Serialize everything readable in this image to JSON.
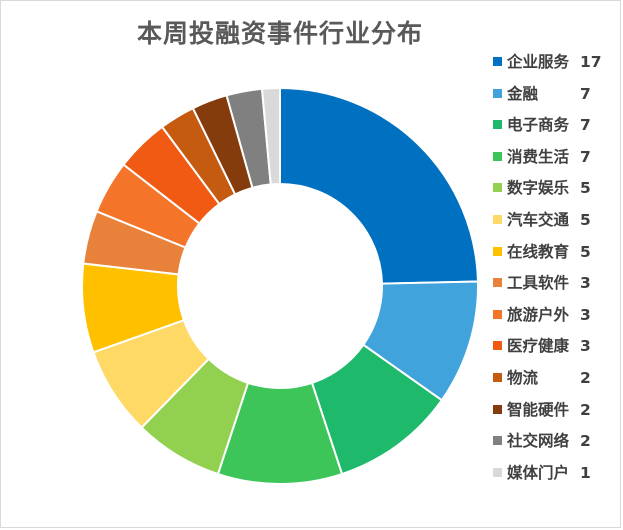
{
  "chart_data": {
    "type": "pie",
    "title": "本周投融资事件行业分布",
    "legend_position": "right",
    "categories": [
      "企业服务",
      "金融",
      "电子商务",
      "消费生活",
      "数字娱乐",
      "汽车交通",
      "在线教育",
      "工具软件",
      "旅游户外",
      "医疗健康",
      "物流",
      "智能硬件",
      "社交网络",
      "媒体门户"
    ],
    "values": [
      17,
      7,
      7,
      7,
      5,
      5,
      5,
      3,
      3,
      3,
      2,
      2,
      2,
      1
    ],
    "colors": [
      "#0070C0",
      "#41A3DC",
      "#1FB96B",
      "#3DC55A",
      "#92D050",
      "#FFD966",
      "#FFC000",
      "#E8823B",
      "#F4742A",
      "#F05A12",
      "#C55A11",
      "#843C0C",
      "#808080",
      "#D9D9D9"
    ]
  }
}
